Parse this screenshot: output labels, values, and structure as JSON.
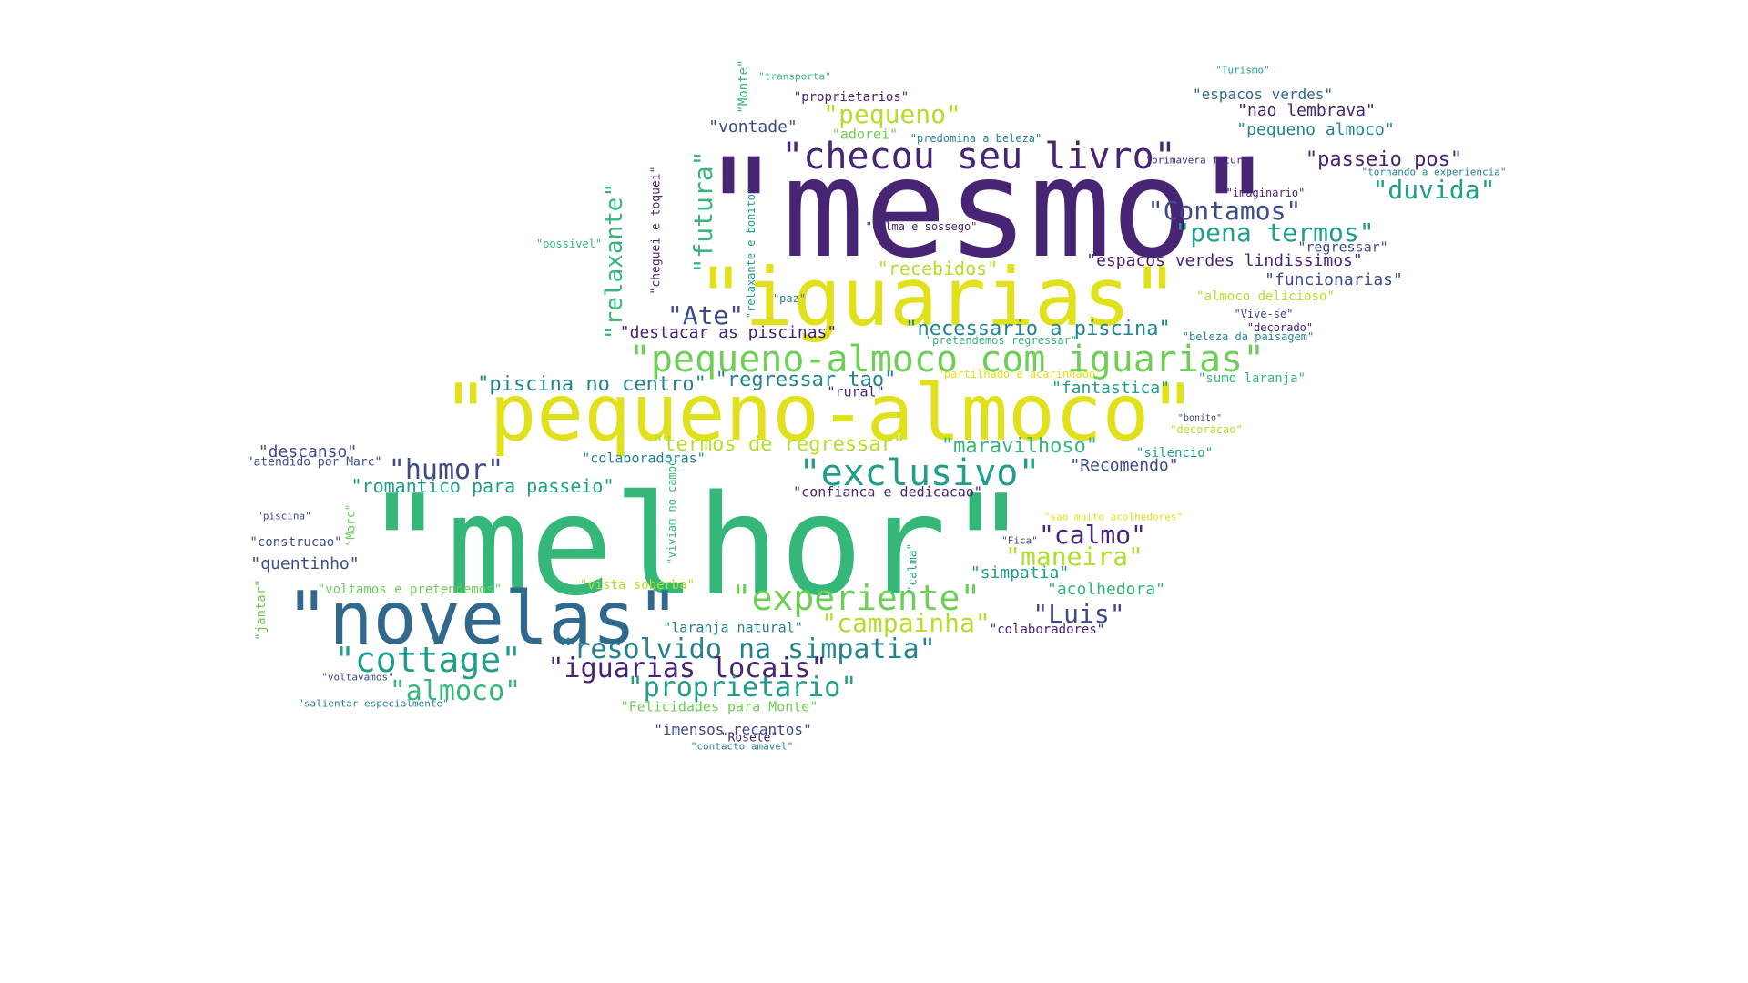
{
  "colors": {
    "c1": "#440154",
    "c2": "#482475",
    "c3": "#3e4a89",
    "c4": "#31688e",
    "c5": "#26828e",
    "c6": "#1f9e89",
    "c7": "#35b779",
    "c8": "#6ece58",
    "c9": "#b5de2b",
    "c10": "#e0e11a"
  },
  "words": [
    {
      "id": "mesmo",
      "text": "\"mesmo\"",
      "color": "c2"
    },
    {
      "id": "melhor",
      "text": "\"melhor\"",
      "color": "c7"
    },
    {
      "id": "pequeno-almoco",
      "text": "\"pequeno-almoco\"",
      "color": "c10"
    },
    {
      "id": "iguarias",
      "text": "\"iguarias\"",
      "color": "c10"
    },
    {
      "id": "novelas",
      "text": "\"novelas\"",
      "color": "c4"
    },
    {
      "id": "pequeno-almoco-com-iguarias",
      "text": "\"pequeno-almoco com iguarias\"",
      "color": "c8"
    },
    {
      "id": "checou-seu-livro",
      "text": "\"checou seu livro\"",
      "color": "c2"
    },
    {
      "id": "exclusivo",
      "text": "\"exclusivo\"",
      "color": "c6"
    },
    {
      "id": "experiente",
      "text": "\"experiente\"",
      "color": "c8"
    },
    {
      "id": "cottage",
      "text": "\"cottage\"",
      "color": "c6"
    },
    {
      "id": "resolvido-na-simpatia",
      "text": "\"resolvido na simpatia\"",
      "color": "c5"
    },
    {
      "id": "iguarias-locais",
      "text": "\"iguarias locais\"",
      "color": "c2"
    },
    {
      "id": "proprietario",
      "text": "\"proprietario\"",
      "color": "c6"
    },
    {
      "id": "almoco",
      "text": "\"almoco\"",
      "color": "c7"
    },
    {
      "id": "humor",
      "text": "\"humor\"",
      "color": "c3"
    },
    {
      "id": "calmo",
      "text": "\"calmo\"",
      "color": "c2"
    },
    {
      "id": "maneira",
      "text": "\"maneira\"",
      "color": "c9"
    },
    {
      "id": "luis",
      "text": "\"Luis\"",
      "color": "c3"
    },
    {
      "id": "campainha",
      "text": "\"campainha\"",
      "color": "c9"
    },
    {
      "id": "contamos",
      "text": "\"Contamos\"",
      "color": "c3"
    },
    {
      "id": "pena-termos",
      "text": "\"pena termos\"",
      "color": "c6"
    },
    {
      "id": "duvida",
      "text": "\"duvida\"",
      "color": "c6"
    },
    {
      "id": "pequeno",
      "text": "\"pequeno\"",
      "color": "c9"
    },
    {
      "id": "ate",
      "text": "\"Ate\"",
      "color": "c3"
    },
    {
      "id": "passeio-pos",
      "text": "\"passeio pos\"",
      "color": "c2"
    },
    {
      "id": "necessario-a-piscina",
      "text": "\"necessario a piscina\"",
      "color": "c5"
    },
    {
      "id": "piscina-no-centro",
      "text": "\"piscina no centro\"",
      "color": "c5"
    },
    {
      "id": "regressar-tao",
      "text": "\"regressar tao\"",
      "color": "c5"
    },
    {
      "id": "maravilhoso",
      "text": "\"maravilhoso\"",
      "color": "c7"
    },
    {
      "id": "termos-de-regressar",
      "text": "\"termos de regressar\"",
      "color": "c9"
    },
    {
      "id": "romantico-para-passeio",
      "text": "\"romantico para passeio\"",
      "color": "c6"
    },
    {
      "id": "recebidos",
      "text": "\"recebidos\"",
      "color": "c9"
    },
    {
      "id": "relaxante",
      "text": "\"relaxante\"",
      "color": "c7"
    },
    {
      "id": "futura",
      "text": "\"futura\"",
      "color": "c7"
    },
    {
      "id": "espacos-verdes-lindissimos",
      "text": "\"espacos verdes lindissimos\"",
      "color": "c2"
    },
    {
      "id": "funcionarias",
      "text": "\"funcionarias\"",
      "color": "c3"
    },
    {
      "id": "nao-lembrava",
      "text": "\"nao lembrava\"",
      "color": "c2"
    },
    {
      "id": "pequeno-almoco-2",
      "text": "\"pequeno almoco\"",
      "color": "c5"
    },
    {
      "id": "espacos-verdes",
      "text": "\"espacos verdes\"",
      "color": "c4"
    },
    {
      "id": "vontade",
      "text": "\"vontade\"",
      "color": "c3"
    },
    {
      "id": "destacar-as-piscinas",
      "text": "\"destacar as piscinas\"",
      "color": "c2"
    },
    {
      "id": "fantastica",
      "text": "\"fantastica\"",
      "color": "c6"
    },
    {
      "id": "recomendo",
      "text": "\"Recomendo\"",
      "color": "c3"
    },
    {
      "id": "descanso",
      "text": "\"descanso\"",
      "color": "c3"
    },
    {
      "id": "quentinho",
      "text": "\"quentinho\"",
      "color": "c3"
    },
    {
      "id": "acolhedora",
      "text": "\"acolhedora\"",
      "color": "c7"
    },
    {
      "id": "simpatia",
      "text": "\"simpatia\"",
      "color": "c6"
    },
    {
      "id": "imensos-recantos",
      "text": "\"imensos recantos\"",
      "color": "c3"
    },
    {
      "id": "felicidades-para-monte",
      "text": "\"Felicidades para Monte\"",
      "color": "c8"
    },
    {
      "id": "colaboradoras",
      "text": "\"colaboradoras\"",
      "color": "c5"
    },
    {
      "id": "confianca-e-dedicacao",
      "text": "\"confianca e dedicacao\"",
      "color": "c2"
    },
    {
      "id": "colaboradores",
      "text": "\"colaboradores\"",
      "color": "c2"
    },
    {
      "id": "laranja-natural",
      "text": "\"laranja natural\"",
      "color": "c5"
    },
    {
      "id": "voltamos-e-pretendemos",
      "text": "\"voltamos e pretendemos\"",
      "color": "c8"
    },
    {
      "id": "proprietarios",
      "text": "\"proprietarios\"",
      "color": "c2"
    },
    {
      "id": "adorei",
      "text": "\"adorei\"",
      "color": "c8"
    },
    {
      "id": "regressar",
      "text": "\"regressar\"",
      "color": "c3"
    },
    {
      "id": "rural",
      "text": "\"rural\"",
      "color": "c2"
    },
    {
      "id": "vista-soberba",
      "text": "\"vista soberba\"",
      "color": "c9"
    },
    {
      "id": "construcao",
      "text": "\"construcao\"",
      "color": "c3"
    },
    {
      "id": "almoco-delicioso",
      "text": "\"almoco delicioso\"",
      "color": "c9"
    },
    {
      "id": "sumo-laranja",
      "text": "\"sumo laranja\"",
      "color": "c7"
    },
    {
      "id": "silencio",
      "text": "\"silencio\"",
      "color": "c6"
    },
    {
      "id": "atendido-por-marc",
      "text": "\"atendido por Marc\"",
      "color": "c3"
    },
    {
      "id": "monte",
      "text": "\"Monte\"",
      "color": "c7"
    },
    {
      "id": "jantar",
      "text": "\"jantar\"",
      "color": "c8"
    },
    {
      "id": "calma",
      "text": "\"calma\"",
      "color": "c6"
    },
    {
      "id": "marc",
      "text": "\"Marc\"",
      "color": "c8"
    },
    {
      "id": "cheguei-e-toquei",
      "text": "\"cheguei e toquei\"",
      "color": "c2"
    },
    {
      "id": "relaxante-e-bonito",
      "text": "\"relaxante e bonito\"",
      "color": "c6"
    },
    {
      "id": "viviam-no-campo",
      "text": "\"viviam no campo\"",
      "color": "c7"
    },
    {
      "id": "partilhado-e-acarinhado",
      "text": "\"partilhado e acarinhado\"",
      "color": "c10"
    },
    {
      "id": "pretendemos-regressar",
      "text": "\"pretendemos regressar\"",
      "color": "c7"
    },
    {
      "id": "beleza-da-paisagem",
      "text": "\"beleza da paisagem\"",
      "color": "c5"
    },
    {
      "id": "decorado",
      "text": "\"decorado\"",
      "color": "c2"
    },
    {
      "id": "vive-se",
      "text": "\"Vive-se\"",
      "color": "c3"
    },
    {
      "id": "calma-e-sossego",
      "text": "\"calma e sossego\"",
      "color": "c2"
    },
    {
      "id": "paz",
      "text": "\"paz\"",
      "color": "c5"
    },
    {
      "id": "possivel",
      "text": "\"possivel\"",
      "color": "c7"
    },
    {
      "id": "imaginario",
      "text": "\"imaginario\"",
      "color": "c2"
    },
    {
      "id": "primavera-futura",
      "text": "\"primavera futura\"",
      "color": "c2"
    },
    {
      "id": "tornando-a-experiencia",
      "text": "\"tornando a experiencia\"",
      "color": "c5"
    },
    {
      "id": "predomina-a-beleza",
      "text": "\"predomina a beleza\"",
      "color": "c5"
    },
    {
      "id": "transporta",
      "text": "\"transporta\"",
      "color": "c7"
    },
    {
      "id": "turismo",
      "text": "\"Turismo\"",
      "color": "c6"
    },
    {
      "id": "decoracao",
      "text": "\"decoracao\"",
      "color": "c9"
    },
    {
      "id": "bonito",
      "text": "\"bonito\"",
      "color": "c3"
    },
    {
      "id": "sao-muito-acolhedores",
      "text": "\"sao muito acolhedores\"",
      "color": "c10"
    },
    {
      "id": "fica",
      "text": "\"Fica\"",
      "color": "c3"
    },
    {
      "id": "piscina",
      "text": "\"piscina\"",
      "color": "c3"
    },
    {
      "id": "voltavamos",
      "text": "\"voltavamos\"",
      "color": "c3"
    },
    {
      "id": "salientar-especialmente",
      "text": "\"salientar especialmente\"",
      "color": "c5"
    },
    {
      "id": "rosete",
      "text": "\"Rosete\"",
      "color": "c2"
    },
    {
      "id": "contacto-amavel",
      "text": "\"contacto amavel\"",
      "color": "c5"
    }
  ]
}
